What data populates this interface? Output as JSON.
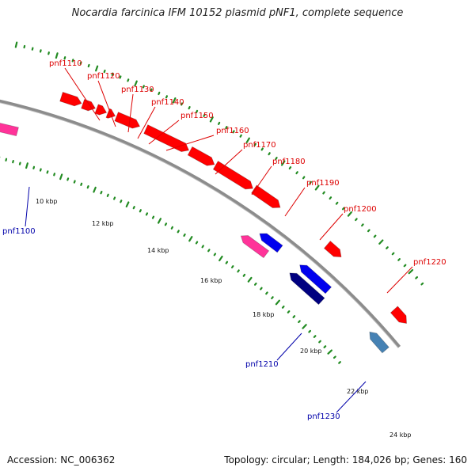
{
  "title": "Nocardia farcinica IFM 10152 plasmid pNF1, complete sequence",
  "accession": "Accession: NC_006362",
  "summary": "Topology: circular; Length: 184,026 bp; Genes: 160",
  "plasmid_length_bp": 184026,
  "colors": {
    "backbone": "#888888",
    "forward_gene": "#ff0000",
    "reverse_gene": "#0000ee",
    "pseudo_gene": "#ff3399",
    "dark_gene": "#000080",
    "steel_gene": "#4682b4",
    "tick_dots": "#228B22",
    "forward_label": "#dd0000",
    "reverse_label": "#0000aa"
  },
  "scale_ticks": [
    "10 kbp",
    "12 kbp",
    "14 kbp",
    "16 kbp",
    "18 kbp",
    "20 kbp",
    "22 kbp",
    "24 kbp"
  ],
  "gene_labels": [
    {
      "text": "pnf1110",
      "strand": "forward"
    },
    {
      "text": "pnf1120",
      "strand": "forward"
    },
    {
      "text": "pnf1130",
      "strand": "forward"
    },
    {
      "text": "pnf1140",
      "strand": "forward"
    },
    {
      "text": "pnf1150",
      "strand": "forward"
    },
    {
      "text": "pnf1160",
      "strand": "forward"
    },
    {
      "text": "pnf1170",
      "strand": "forward"
    },
    {
      "text": "pnf1180",
      "strand": "forward"
    },
    {
      "text": "pnf1190",
      "strand": "forward"
    },
    {
      "text": "pnf1200",
      "strand": "forward"
    },
    {
      "text": "pnf1220",
      "strand": "forward"
    },
    {
      "text": "pnf1100",
      "strand": "reverse"
    },
    {
      "text": "pnf1210",
      "strand": "reverse"
    },
    {
      "text": "pnf1230",
      "strand": "reverse"
    }
  ]
}
